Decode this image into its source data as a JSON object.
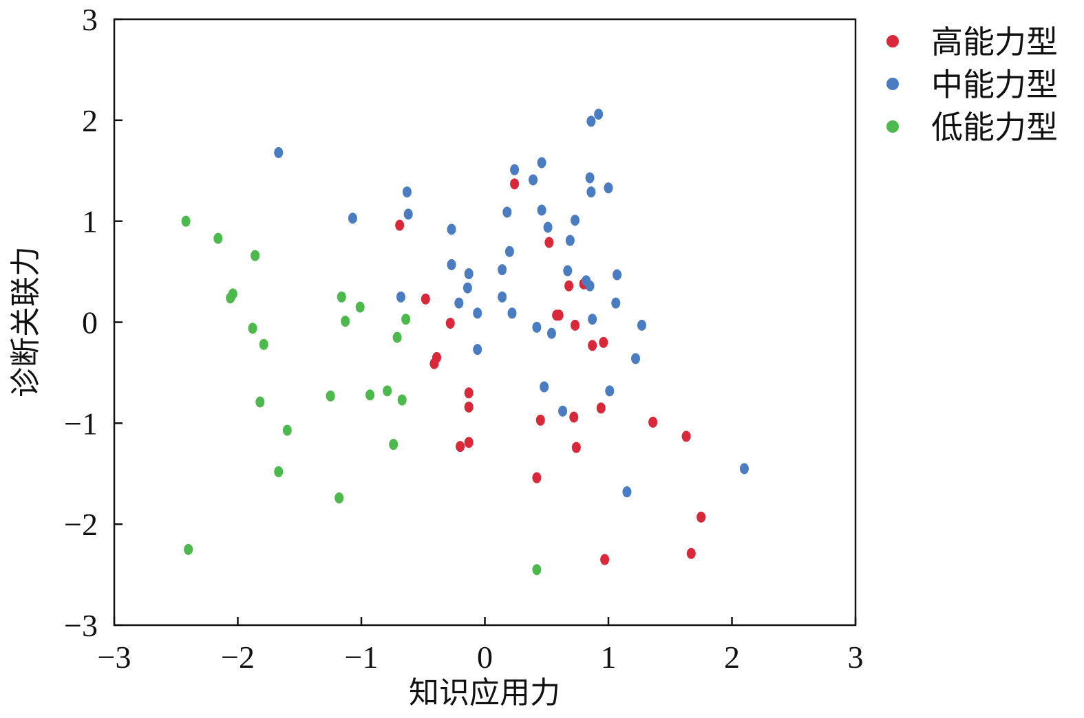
{
  "chart_data": {
    "type": "scatter",
    "title": "",
    "xlabel": "知识应用力",
    "ylabel": "诊断关联力",
    "xlim": [
      -3,
      3
    ],
    "ylim": [
      -3,
      3
    ],
    "xticks": [
      -3,
      -2,
      -1,
      0,
      1,
      2,
      3
    ],
    "yticks": [
      -3,
      -2,
      -1,
      0,
      1,
      2,
      3
    ],
    "xtick_labels": [
      "−3",
      "−2",
      "−1",
      "0",
      "1",
      "2",
      "3"
    ],
    "ytick_labels": [
      "−3",
      "−2",
      "−1",
      "0",
      "1",
      "2",
      "3"
    ],
    "grid": false,
    "legend_position": "top-right, outside plot",
    "series": [
      {
        "name": "高能力型",
        "color": "#d9283a",
        "points": [
          [
            -0.69,
            0.96
          ],
          [
            0.24,
            1.37
          ],
          [
            0.52,
            0.79
          ],
          [
            -0.48,
            0.23
          ],
          [
            0.68,
            0.36
          ],
          [
            0.8,
            0.38
          ],
          [
            -0.28,
            -0.01
          ],
          [
            0.58,
            0.07
          ],
          [
            0.6,
            0.07
          ],
          [
            0.73,
            -0.03
          ],
          [
            0.87,
            -0.23
          ],
          [
            0.96,
            -0.2
          ],
          [
            -0.39,
            -0.35
          ],
          [
            -0.41,
            -0.41
          ],
          [
            -0.13,
            -0.7
          ],
          [
            -0.13,
            -0.84
          ],
          [
            0.45,
            -0.97
          ],
          [
            0.72,
            -0.94
          ],
          [
            0.94,
            -0.85
          ],
          [
            1.36,
            -0.99
          ],
          [
            1.63,
            -1.13
          ],
          [
            -0.2,
            -1.23
          ],
          [
            -0.13,
            -1.19
          ],
          [
            0.74,
            -1.24
          ],
          [
            0.42,
            -1.54
          ],
          [
            1.75,
            -1.93
          ],
          [
            1.67,
            -2.29
          ],
          [
            0.97,
            -2.35
          ]
        ]
      },
      {
        "name": "中能力型",
        "color": "#4a7cc2",
        "points": [
          [
            -1.67,
            1.68
          ],
          [
            0.92,
            2.06
          ],
          [
            0.86,
            1.99
          ],
          [
            0.46,
            1.58
          ],
          [
            0.24,
            1.51
          ],
          [
            0.39,
            1.41
          ],
          [
            0.85,
            1.43
          ],
          [
            1.0,
            1.33
          ],
          [
            0.86,
            1.29
          ],
          [
            -0.63,
            1.29
          ],
          [
            -0.62,
            1.07
          ],
          [
            -1.07,
            1.03
          ],
          [
            0.18,
            1.09
          ],
          [
            0.46,
            1.11
          ],
          [
            0.73,
            1.01
          ],
          [
            0.51,
            0.94
          ],
          [
            -0.27,
            0.92
          ],
          [
            0.69,
            0.81
          ],
          [
            0.2,
            0.7
          ],
          [
            -0.27,
            0.57
          ],
          [
            0.14,
            0.52
          ],
          [
            0.67,
            0.51
          ],
          [
            -0.13,
            0.48
          ],
          [
            0.82,
            0.41
          ],
          [
            0.85,
            0.36
          ],
          [
            1.07,
            0.47
          ],
          [
            -0.14,
            0.34
          ],
          [
            -0.68,
            0.25
          ],
          [
            0.14,
            0.25
          ],
          [
            -0.21,
            0.19
          ],
          [
            1.06,
            0.19
          ],
          [
            -0.06,
            0.09
          ],
          [
            0.22,
            0.09
          ],
          [
            0.87,
            0.03
          ],
          [
            0.42,
            -0.05
          ],
          [
            1.27,
            -0.03
          ],
          [
            0.54,
            -0.11
          ],
          [
            -0.06,
            -0.27
          ],
          [
            1.22,
            -0.36
          ],
          [
            0.48,
            -0.64
          ],
          [
            1.01,
            -0.68
          ],
          [
            0.63,
            -0.88
          ],
          [
            2.1,
            -1.45
          ],
          [
            1.15,
            -1.68
          ]
        ]
      },
      {
        "name": "低能力型",
        "color": "#4cb94c",
        "points": [
          [
            -2.42,
            1.0
          ],
          [
            -2.16,
            0.83
          ],
          [
            -1.86,
            0.66
          ],
          [
            -2.04,
            0.28
          ],
          [
            -2.06,
            0.24
          ],
          [
            -1.16,
            0.25
          ],
          [
            -1.01,
            0.15
          ],
          [
            -1.13,
            0.01
          ],
          [
            -0.64,
            0.03
          ],
          [
            -1.88,
            -0.06
          ],
          [
            -1.79,
            -0.22
          ],
          [
            -0.71,
            -0.15
          ],
          [
            -1.25,
            -0.73
          ],
          [
            -0.93,
            -0.72
          ],
          [
            -0.79,
            -0.68
          ],
          [
            -0.67,
            -0.77
          ],
          [
            -1.82,
            -0.79
          ],
          [
            -1.6,
            -1.07
          ],
          [
            -0.74,
            -1.21
          ],
          [
            -1.67,
            -1.48
          ],
          [
            -1.18,
            -1.74
          ],
          [
            -2.4,
            -2.25
          ],
          [
            0.42,
            -2.45
          ]
        ]
      }
    ]
  }
}
